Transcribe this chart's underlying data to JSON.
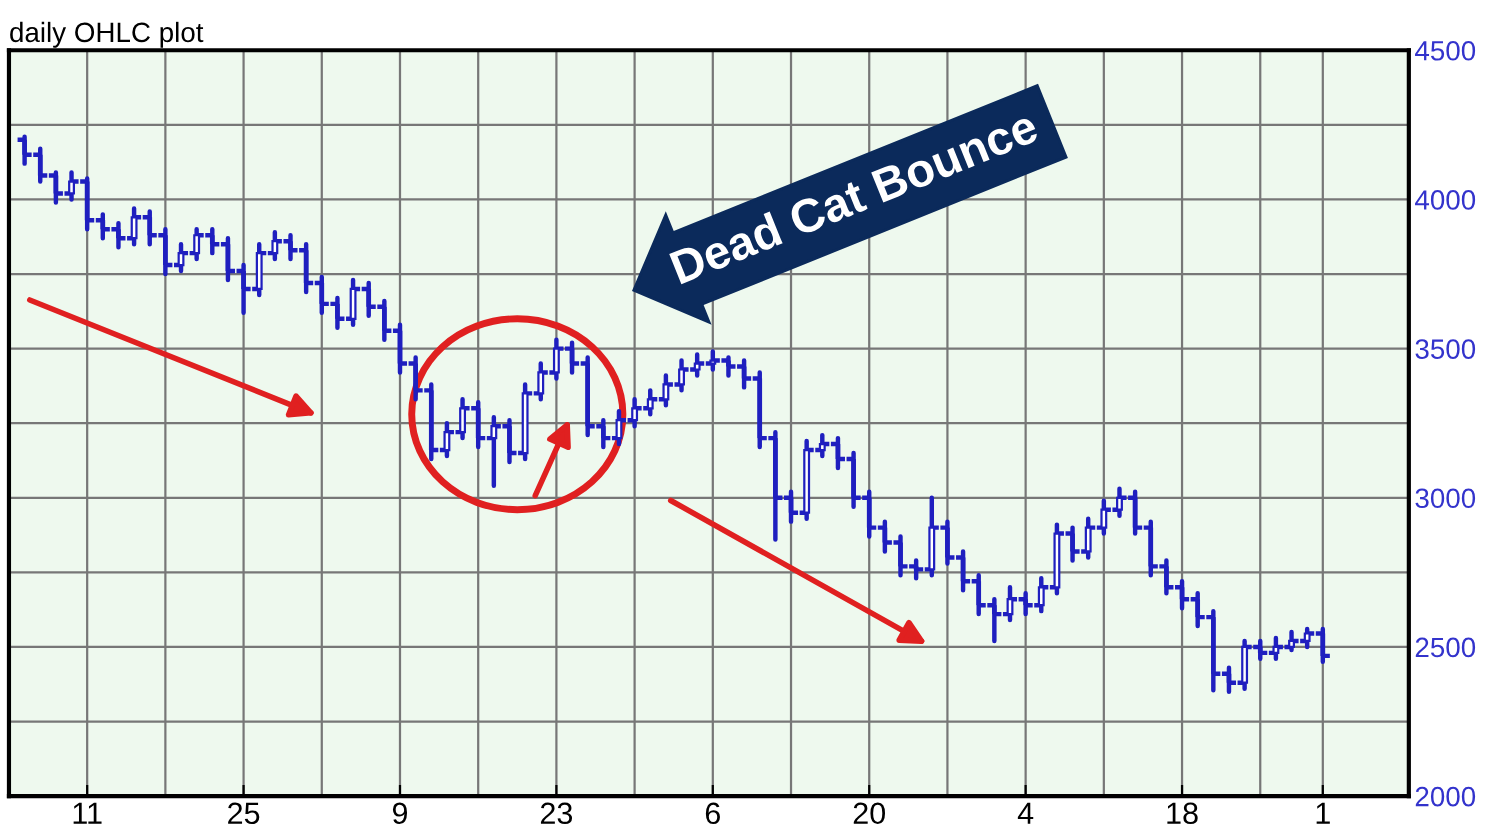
{
  "chart_data": {
    "type": "candlestick",
    "title": "daily OHLC plot",
    "categories": [
      null,
      null,
      null,
      null,
      "11",
      null,
      null,
      null,
      null,
      null,
      null,
      null,
      null,
      null,
      "25",
      null,
      null,
      null,
      null,
      null,
      null,
      null,
      null,
      null,
      "9",
      null,
      null,
      null,
      null,
      null,
      null,
      null,
      null,
      null,
      "23",
      null,
      null,
      null,
      null,
      null,
      null,
      null,
      null,
      null,
      "6",
      null,
      null,
      null,
      null,
      null,
      null,
      null,
      null,
      null,
      "20",
      null,
      null,
      null,
      null,
      null,
      null,
      null,
      null,
      null,
      "4",
      null,
      null,
      null,
      null,
      null,
      null,
      null,
      null,
      null,
      "18",
      null,
      null,
      null,
      null,
      null,
      null,
      null,
      null,
      "1"
    ],
    "ohlc": [
      [
        4200,
        4210,
        4120,
        4150
      ],
      [
        4150,
        4170,
        4060,
        4080
      ],
      [
        4080,
        4090,
        3990,
        4020
      ],
      [
        4020,
        4090,
        4000,
        4060
      ],
      [
        4060,
        4070,
        3900,
        3930
      ],
      [
        3930,
        3950,
        3870,
        3900
      ],
      [
        3900,
        3920,
        3840,
        3870
      ],
      [
        3870,
        3970,
        3850,
        3940
      ],
      [
        3940,
        3960,
        3850,
        3880
      ],
      [
        3880,
        3900,
        3750,
        3780
      ],
      [
        3780,
        3850,
        3760,
        3820
      ],
      [
        3820,
        3900,
        3800,
        3880
      ],
      [
        3880,
        3900,
        3820,
        3850
      ],
      [
        3850,
        3870,
        3730,
        3760
      ],
      [
        3760,
        3780,
        3620,
        3700
      ],
      [
        3700,
        3850,
        3680,
        3820
      ],
      [
        3820,
        3890,
        3800,
        3860
      ],
      [
        3860,
        3880,
        3800,
        3830
      ],
      [
        3830,
        3850,
        3690,
        3720
      ],
      [
        3720,
        3740,
        3620,
        3650
      ],
      [
        3650,
        3670,
        3570,
        3600
      ],
      [
        3600,
        3730,
        3580,
        3700
      ],
      [
        3700,
        3720,
        3610,
        3640
      ],
      [
        3640,
        3660,
        3530,
        3560
      ],
      [
        3560,
        3580,
        3420,
        3450
      ],
      [
        3450,
        3470,
        3330,
        3360
      ],
      [
        3360,
        3380,
        3130,
        3160
      ],
      [
        3160,
        3250,
        3140,
        3220
      ],
      [
        3220,
        3330,
        3200,
        3300
      ],
      [
        3300,
        3320,
        3170,
        3200
      ],
      [
        3200,
        3270,
        3040,
        3240
      ],
      [
        3240,
        3260,
        3120,
        3150
      ],
      [
        3150,
        3380,
        3130,
        3350
      ],
      [
        3350,
        3450,
        3330,
        3420
      ],
      [
        3420,
        3530,
        3400,
        3500
      ],
      [
        3500,
        3520,
        3420,
        3450
      ],
      [
        3450,
        3470,
        3210,
        3240
      ],
      [
        3240,
        3260,
        3170,
        3200
      ],
      [
        3200,
        3290,
        3180,
        3260
      ],
      [
        3260,
        3330,
        3240,
        3300
      ],
      [
        3300,
        3360,
        3280,
        3330
      ],
      [
        3330,
        3410,
        3310,
        3380
      ],
      [
        3380,
        3460,
        3360,
        3430
      ],
      [
        3430,
        3480,
        3410,
        3450
      ],
      [
        3450,
        3490,
        3430,
        3460
      ],
      [
        3460,
        3470,
        3410,
        3440
      ],
      [
        3440,
        3460,
        3370,
        3400
      ],
      [
        3400,
        3420,
        3170,
        3200
      ],
      [
        3200,
        3220,
        2860,
        3000
      ],
      [
        3000,
        3020,
        2920,
        2950
      ],
      [
        2950,
        3190,
        2930,
        3160
      ],
      [
        3160,
        3210,
        3140,
        3180
      ],
      [
        3180,
        3200,
        3100,
        3130
      ],
      [
        3130,
        3150,
        2970,
        3000
      ],
      [
        3000,
        3020,
        2870,
        2900
      ],
      [
        2900,
        2920,
        2820,
        2850
      ],
      [
        2850,
        2870,
        2740,
        2770
      ],
      [
        2770,
        2790,
        2730,
        2760
      ],
      [
        2760,
        3000,
        2740,
        2900
      ],
      [
        2900,
        2920,
        2780,
        2800
      ],
      [
        2800,
        2820,
        2690,
        2720
      ],
      [
        2720,
        2740,
        2610,
        2640
      ],
      [
        2640,
        2660,
        2520,
        2610
      ],
      [
        2610,
        2700,
        2590,
        2660
      ],
      [
        2660,
        2680,
        2610,
        2640
      ],
      [
        2640,
        2730,
        2620,
        2700
      ],
      [
        2700,
        2910,
        2680,
        2880
      ],
      [
        2880,
        2900,
        2790,
        2820
      ],
      [
        2820,
        2930,
        2800,
        2900
      ],
      [
        2900,
        2990,
        2880,
        2960
      ],
      [
        2960,
        3030,
        2940,
        3000
      ],
      [
        3000,
        3020,
        2880,
        2900
      ],
      [
        2900,
        2920,
        2740,
        2770
      ],
      [
        2770,
        2790,
        2680,
        2700
      ],
      [
        2700,
        2720,
        2630,
        2660
      ],
      [
        2660,
        2680,
        2570,
        2600
      ],
      [
        2600,
        2620,
        2355,
        2410
      ],
      [
        2410,
        2430,
        2350,
        2380
      ],
      [
        2380,
        2520,
        2360,
        2500
      ],
      [
        2500,
        2520,
        2460,
        2480
      ],
      [
        2480,
        2530,
        2460,
        2500
      ],
      [
        2500,
        2550,
        2490,
        2520
      ],
      [
        2520,
        2560,
        2500,
        2545
      ],
      [
        2545,
        2560,
        2450,
        2470
      ]
    ],
    "color": "#1f1fbf",
    "ylim": [
      2000,
      4500
    ],
    "yticks": [
      2000,
      {
        "value": 2250,
        "label": null
      },
      2500,
      {
        "value": 2750,
        "label": null
      },
      3000,
      {
        "value": 3250,
        "label": null
      },
      3500,
      {
        "value": 3750,
        "label": null
      },
      4000,
      {
        "value": 4250,
        "label": null
      },
      4500
    ],
    "grid": true,
    "annotations": [
      "Dead Cat Bounce"
    ]
  }
}
